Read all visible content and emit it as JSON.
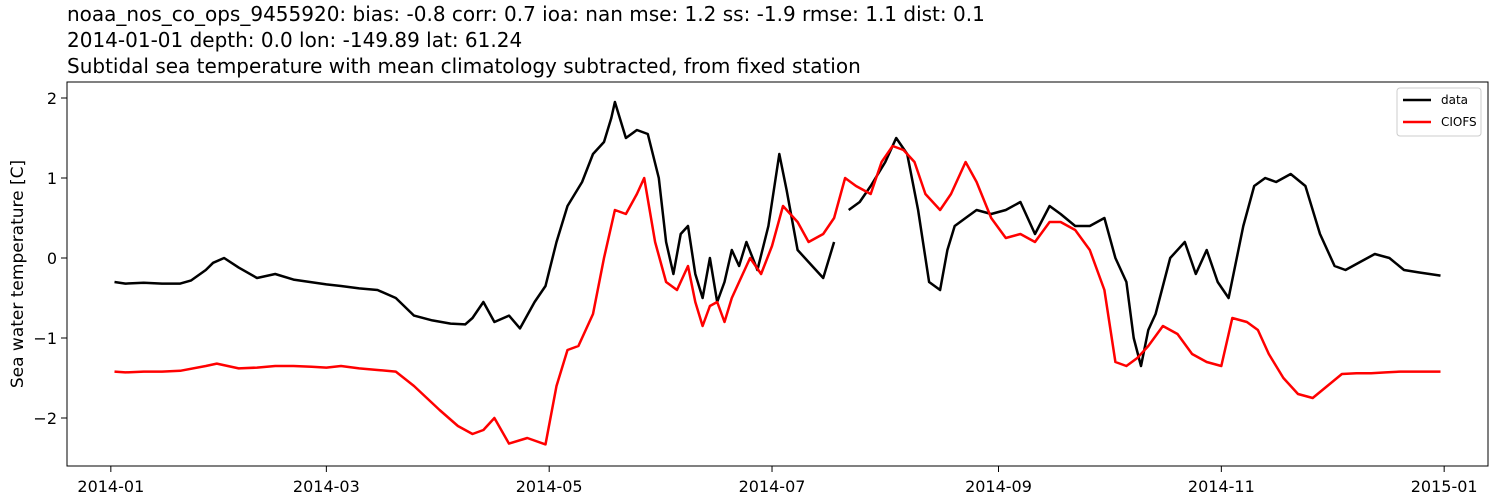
{
  "title": {
    "line1": "noaa_nos_co_ops_9455920: bias: -0.8  corr: 0.7  ioa: nan  mse: 1.2  ss: -1.9  rmse: 1.1  dist: 0.1",
    "line2": "2014-01-01 depth: 0.0 lon: -149.89 lat: 61.24",
    "line3": "Subtidal sea temperature with mean climatology subtracted, from fixed station"
  },
  "chart_data": {
    "type": "line",
    "title": "Subtidal sea temperature with mean climatology subtracted, from fixed station",
    "xlabel": "",
    "ylabel": "Sea water temperature [C]",
    "xlim": [
      "2013-12-20",
      "2015-01-13"
    ],
    "ylim": [
      -2.6,
      2.2
    ],
    "x_ticks": [
      "2014-01",
      "2014-03",
      "2014-05",
      "2014-07",
      "2014-09",
      "2014-11",
      "2015-01"
    ],
    "y_ticks": [
      2,
      1,
      0,
      -1,
      -2
    ],
    "y_tick_labels": [
      "2",
      "1",
      "0",
      "−1",
      "−2"
    ],
    "grid": false,
    "legend_position": "upper right",
    "series": [
      {
        "name": "data",
        "color": "#000000",
        "x": [
          "2014-01-02",
          "2014-01-05",
          "2014-01-10",
          "2014-01-15",
          "2014-01-20",
          "2014-01-23",
          "2014-01-27",
          "2014-01-29",
          "2014-02-01",
          "2014-02-05",
          "2014-02-10",
          "2014-02-15",
          "2014-02-20",
          "2014-03-01",
          "2014-03-05",
          "2014-03-10",
          "2014-03-15",
          "2014-03-20",
          "2014-03-25",
          "2014-03-30",
          "2014-04-04",
          "2014-04-08",
          "2014-04-10",
          "2014-04-13",
          "2014-04-16",
          "2014-04-20",
          "2014-04-23",
          "2014-04-27",
          "2014-04-30",
          "2014-05-03",
          "2014-05-06",
          "2014-05-10",
          "2014-05-13",
          "2014-05-16",
          "2014-05-18",
          "2014-05-19",
          "2014-05-22",
          "2014-05-25",
          "2014-05-28",
          "2014-05-31",
          "2014-06-02",
          "2014-06-04",
          "2014-06-06",
          "2014-06-08",
          "2014-06-10",
          "2014-06-12",
          "2014-06-14",
          "2014-06-16",
          "2014-06-18",
          "2014-06-20",
          "2014-06-22",
          "2014-06-24",
          "2014-06-27",
          "2014-06-30",
          "2014-07-03",
          "2014-07-05",
          "2014-07-08",
          "2014-07-12",
          "2014-07-15",
          "2014-07-18",
          "2014-07-20",
          "2014-07-22",
          "2014-07-25",
          "2014-07-28",
          "2014-08-01",
          "2014-08-04",
          "2014-08-07",
          "2014-08-10",
          "2014-08-13",
          "2014-08-16",
          "2014-08-18",
          "2014-08-20",
          "2014-08-23",
          "2014-08-26",
          "2014-08-30",
          "2014-09-03",
          "2014-09-07",
          "2014-09-11",
          "2014-09-15",
          "2014-09-18",
          "2014-09-22",
          "2014-09-26",
          "2014-09-30",
          "2014-10-03",
          "2014-10-06",
          "2014-10-08",
          "2014-10-10",
          "2014-10-12",
          "2014-10-14",
          "2014-10-18",
          "2014-10-22",
          "2014-10-25",
          "2014-10-28",
          "2014-10-31",
          "2014-11-03",
          "2014-11-07",
          "2014-11-10",
          "2014-11-13",
          "2014-11-16",
          "2014-11-20",
          "2014-11-24",
          "2014-11-28",
          "2014-12-02",
          "2014-12-05",
          "2014-12-09",
          "2014-12-13",
          "2014-12-17",
          "2014-12-21",
          "2014-12-25",
          "2014-12-28",
          "2014-12-31"
        ],
        "y": [
          -0.3,
          -0.32,
          -0.31,
          -0.32,
          -0.32,
          -0.28,
          -0.15,
          -0.06,
          0.0,
          -0.12,
          -0.25,
          -0.2,
          -0.27,
          -0.33,
          -0.35,
          -0.38,
          -0.4,
          -0.5,
          -0.72,
          -0.78,
          -0.82,
          -0.83,
          -0.75,
          -0.55,
          -0.8,
          -0.72,
          -0.88,
          -0.55,
          -0.35,
          0.2,
          0.65,
          0.95,
          1.3,
          1.45,
          1.75,
          1.95,
          1.5,
          1.6,
          1.55,
          1.0,
          0.2,
          -0.2,
          0.3,
          0.4,
          -0.2,
          -0.5,
          0.0,
          -0.55,
          -0.3,
          0.1,
          -0.1,
          0.2,
          -0.15,
          0.4,
          1.3,
          0.85,
          0.1,
          -0.1,
          -0.25,
          0.2,
          null,
          0.6,
          0.7,
          0.9,
          1.2,
          1.5,
          1.3,
          0.6,
          -0.3,
          -0.4,
          0.1,
          0.4,
          0.5,
          0.6,
          0.55,
          0.6,
          0.7,
          0.3,
          0.65,
          0.55,
          0.4,
          0.4,
          0.5,
          0.0,
          -0.3,
          -1.0,
          -1.35,
          -0.9,
          -0.7,
          0.0,
          0.2,
          -0.2,
          0.1,
          -0.3,
          -0.5,
          0.4,
          0.9,
          1.0,
          0.95,
          1.05,
          0.9,
          0.3,
          -0.1,
          -0.15,
          -0.05,
          0.05,
          0.0,
          -0.15,
          -0.18,
          -0.2,
          -0.22
        ]
      },
      {
        "name": "CIOFS",
        "color": "#ff0000",
        "x": [
          "2014-01-02",
          "2014-01-05",
          "2014-01-10",
          "2014-01-15",
          "2014-01-20",
          "2014-01-27",
          "2014-01-30",
          "2014-02-05",
          "2014-02-10",
          "2014-02-15",
          "2014-02-20",
          "2014-02-25",
          "2014-03-01",
          "2014-03-05",
          "2014-03-10",
          "2014-03-15",
          "2014-03-20",
          "2014-03-25",
          "2014-04-01",
          "2014-04-06",
          "2014-04-10",
          "2014-04-13",
          "2014-04-16",
          "2014-04-20",
          "2014-04-25",
          "2014-04-30",
          "2014-05-03",
          "2014-05-06",
          "2014-05-09",
          "2014-05-13",
          "2014-05-16",
          "2014-05-19",
          "2014-05-22",
          "2014-05-25",
          "2014-05-27",
          "2014-05-30",
          "2014-06-02",
          "2014-06-05",
          "2014-06-08",
          "2014-06-10",
          "2014-06-12",
          "2014-06-14",
          "2014-06-16",
          "2014-06-18",
          "2014-06-20",
          "2014-06-22",
          "2014-06-25",
          "2014-06-28",
          "2014-07-01",
          "2014-07-04",
          "2014-07-08",
          "2014-07-11",
          "2014-07-15",
          "2014-07-18",
          "2014-07-21",
          "2014-07-24",
          "2014-07-28",
          "2014-07-31",
          "2014-08-03",
          "2014-08-06",
          "2014-08-09",
          "2014-08-12",
          "2014-08-16",
          "2014-08-19",
          "2014-08-23",
          "2014-08-26",
          "2014-08-30",
          "2014-09-03",
          "2014-09-07",
          "2014-09-11",
          "2014-09-15",
          "2014-09-18",
          "2014-09-22",
          "2014-09-26",
          "2014-09-30",
          "2014-10-03",
          "2014-10-06",
          "2014-10-09",
          "2014-10-12",
          "2014-10-16",
          "2014-10-20",
          "2014-10-24",
          "2014-10-28",
          "2014-11-01",
          "2014-11-04",
          "2014-11-08",
          "2014-11-11",
          "2014-11-14",
          "2014-11-18",
          "2014-11-22",
          "2014-11-26",
          "2014-11-30",
          "2014-12-04",
          "2014-12-08",
          "2014-12-12",
          "2014-12-16",
          "2014-12-20",
          "2014-12-24",
          "2014-12-28",
          "2014-12-31"
        ],
        "y": [
          -1.42,
          -1.43,
          -1.42,
          -1.42,
          -1.41,
          -1.35,
          -1.32,
          -1.38,
          -1.37,
          -1.35,
          -1.35,
          -1.36,
          -1.37,
          -1.35,
          -1.38,
          -1.4,
          -1.42,
          -1.6,
          -1.9,
          -2.1,
          -2.2,
          -2.15,
          -2.0,
          -2.32,
          -2.25,
          -2.33,
          -1.6,
          -1.15,
          -1.1,
          -0.7,
          0.0,
          0.6,
          0.55,
          0.8,
          1.0,
          0.2,
          -0.3,
          -0.4,
          -0.1,
          -0.55,
          -0.85,
          -0.6,
          -0.55,
          -0.8,
          -0.5,
          -0.3,
          0.0,
          -0.2,
          0.15,
          0.65,
          0.45,
          0.2,
          0.3,
          0.5,
          1.0,
          0.9,
          0.8,
          1.2,
          1.4,
          1.35,
          1.2,
          0.8,
          0.6,
          0.8,
          1.2,
          0.95,
          0.5,
          0.25,
          0.3,
          0.2,
          0.45,
          0.45,
          0.35,
          0.1,
          -0.4,
          -1.3,
          -1.35,
          -1.25,
          -1.1,
          -0.85,
          -0.95,
          -1.2,
          -1.3,
          -1.35,
          -0.75,
          -0.8,
          -0.9,
          -1.2,
          -1.5,
          -1.7,
          -1.75,
          -1.6,
          -1.45,
          -1.44,
          -1.44,
          -1.43,
          -1.42,
          -1.42,
          -1.42,
          -1.42
        ]
      }
    ]
  }
}
